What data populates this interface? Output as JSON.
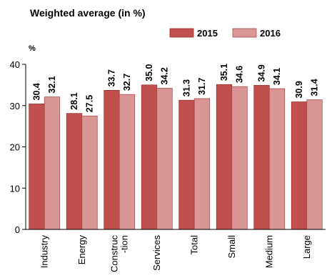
{
  "chart_data": {
    "type": "bar",
    "title": "Weighted average (in %)",
    "ylabel": "%",
    "xlabel": "",
    "ylim": [
      0,
      40
    ],
    "yticks": [
      "0",
      "10",
      "20",
      "30",
      "40"
    ],
    "ytick_values": [
      0,
      10,
      20,
      30,
      40
    ],
    "grid": false,
    "legend_position": "top-right",
    "categories": [
      [
        "Industry"
      ],
      [
        "Energy"
      ],
      [
        "Construc",
        "-tion"
      ],
      [
        "Services"
      ],
      [
        "Total"
      ],
      [
        "Small"
      ],
      [
        "Medium"
      ],
      [
        "Large"
      ]
    ],
    "series": [
      {
        "name": "2015",
        "color": "#C0504D",
        "edge": "#9B2F2C",
        "values": [
          30.4,
          28.1,
          33.7,
          35.0,
          31.3,
          35.1,
          34.9,
          30.9
        ],
        "labels": [
          "30.4",
          "28.1",
          "33.7",
          "35.0",
          "31.3",
          "35.1",
          "34.9",
          "30.9"
        ]
      },
      {
        "name": "2016",
        "color": "#D99694",
        "edge": "#A8504D",
        "values": [
          32.1,
          27.5,
          32.7,
          34.2,
          31.7,
          34.6,
          34.1,
          31.4
        ],
        "labels": [
          "32.1",
          "27.5",
          "32.7",
          "34.2",
          "31.7",
          "34.6",
          "34.1",
          "31.4"
        ]
      }
    ]
  }
}
